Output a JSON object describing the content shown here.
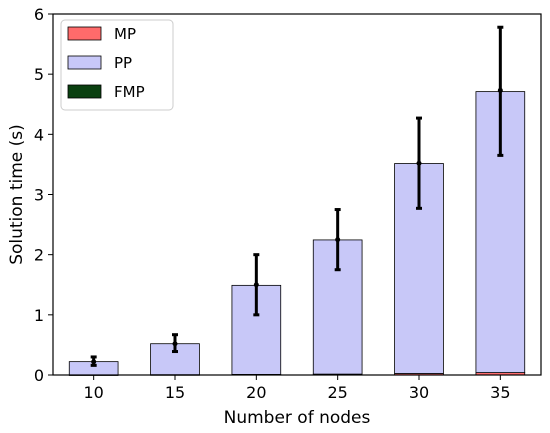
{
  "chart_data": {
    "type": "bar",
    "stacked": true,
    "categories": [
      "10",
      "15",
      "20",
      "25",
      "30",
      "35"
    ],
    "series": [
      {
        "name": "MP",
        "color": "#ff6b6b",
        "values": [
          0.002,
          0.005,
          0.01,
          0.015,
          0.025,
          0.04
        ]
      },
      {
        "name": "PP",
        "color": "#c8c8f8",
        "values": [
          0.22,
          0.515,
          1.48,
          2.23,
          3.49,
          4.67
        ]
      },
      {
        "name": "FMP",
        "color": "#0a4010",
        "values": [
          0.0,
          0.0,
          0.0,
          0.0,
          0.0,
          0.0
        ]
      }
    ],
    "error_bars": {
      "center": [
        0.22,
        0.52,
        1.5,
        2.25,
        3.52,
        4.73
      ],
      "lower": [
        0.16,
        0.39,
        1.0,
        1.75,
        2.77,
        3.65
      ],
      "upper": [
        0.3,
        0.67,
        2.0,
        2.75,
        4.27,
        5.78
      ]
    },
    "xlabel": "Number of nodes",
    "ylabel": "Solution time (s)",
    "ylim": [
      0,
      6
    ],
    "yticks": [
      0,
      1,
      2,
      3,
      4,
      5,
      6
    ],
    "ytick_labels": [
      "0",
      "1",
      "2",
      "3",
      "4",
      "5",
      "6"
    ],
    "grid": false,
    "legend_position": "upper-left"
  }
}
